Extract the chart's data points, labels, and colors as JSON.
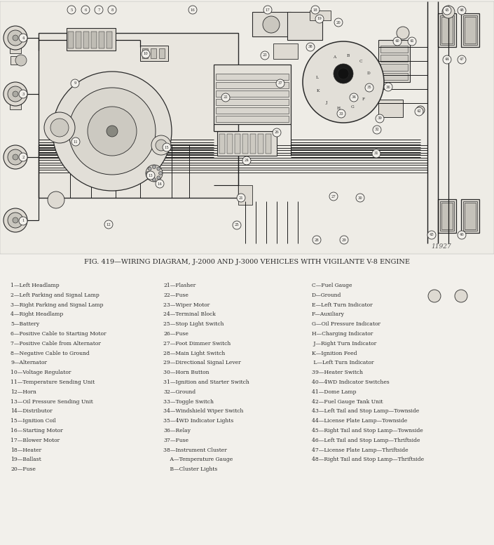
{
  "title": "FIG. 419—WIRING DIAGRAM, J-2000 AND J-3000 VEHICLES WITH VIGILANTE V-8 ENGINE",
  "diagram_number": "11927",
  "page_bg": "#f2f0eb",
  "col1_items": [
    "1—Left Headlamp",
    "2—Left Parking and Signal Lamp",
    "3—Right Parking and Signal Lamp",
    "4—Right Headlamp",
    "5—Battery",
    "6—Positive Cable to Starting Motor",
    "7—Positive Cable from Alternator",
    "8—Negative Cable to Ground",
    "9—Alternator",
    "10—Voltage Regulator",
    "11—Temperature Sending Unit",
    "12—Horn",
    "13—Oil Pressure Sending Unit",
    "14—Distributor",
    "15—Ignition Coil",
    "16—Starting Motor",
    "17—Blower Motor",
    "18—Heater",
    "19—Ballast",
    "20—Fuse"
  ],
  "col2_items": [
    "21—Flasher",
    "22—Fuse",
    "23—Wiper Motor",
    "24—Terminal Block",
    "25—Stop Light Switch",
    "26—Fuse",
    "27—Foot Dimmer Switch",
    "28—Main Light Switch",
    "29—Directional Signal Lever",
    "30—Horn Button",
    "31—Ignition and Starter Switch",
    "32—Ground",
    "33—Toggle Switch",
    "34—Windshield Wiper Switch",
    "35—4WD Indicator Lights",
    "36—Relay",
    "37—Fuse",
    "38—Instrument Cluster",
    "    A—Temperature Gauge",
    "    B—Cluster Lights"
  ],
  "col3_items": [
    "C—Fuel Gauge",
    "D—Ground",
    "E—Left Turn Indicator",
    "F—Auxiliary",
    "G—Oil Pressure Indicator",
    "H—Charging Indicator",
    " J—Right Turn Indicator",
    "K—Ignition Feed",
    " L—Left Turn Indicator",
    "39—Heater Switch",
    "40—4WD Indicator Switches",
    "41—Dome Lamp",
    "42—Fuel Gauge Tank Unit",
    "43—Left Tail and Stop Lamp—Townside",
    "44—License Plate Lamp—Townside",
    "45—Right Tail and Stop Lamp—Townside",
    "46—Left Tail and Stop Lamp—Thriftside",
    "47—License Plate Lamp—Thriftside",
    "48—Right Tail and Stop Lamp—Thriftside"
  ],
  "fig_width": 7.05,
  "fig_height": 7.77
}
